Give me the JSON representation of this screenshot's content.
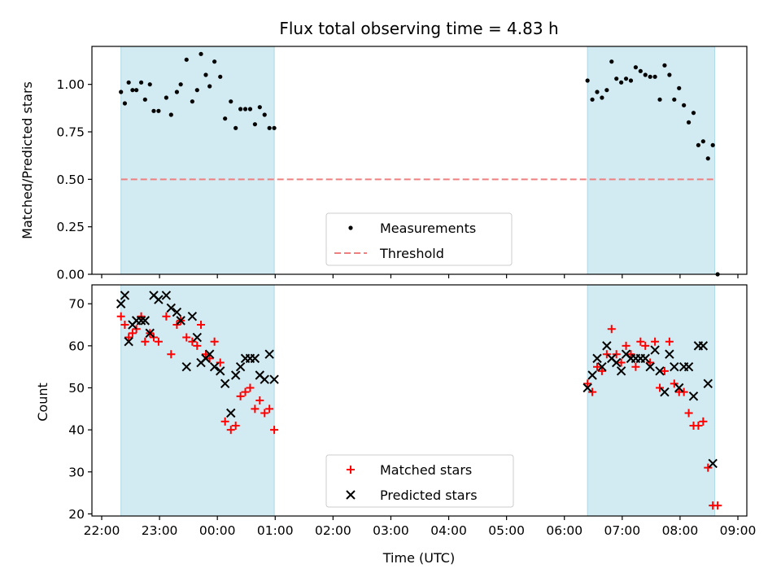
{
  "colors": {
    "shade": "#add8e6",
    "measurement": "#000000",
    "threshold": "#f08080",
    "matched": "#ff0000",
    "predicted": "#000000"
  },
  "chart_data": [
    {
      "type": "scatter",
      "title": "Flux total observing time = 4.83 h",
      "xlabel": "",
      "ylabel": "Matched/Predicted stars",
      "xlim": [
        "22:00",
        "09:00"
      ],
      "ylim": [
        0,
        1.2
      ],
      "y_ticks": [
        "0.00",
        "0.25",
        "0.50",
        "0.75",
        "1.00"
      ],
      "shaded_intervals": [
        [
          "22:20",
          "00:59"
        ],
        [
          "06:24",
          "08:36"
        ]
      ],
      "legend": {
        "position": "lower-center",
        "entries": [
          "Measurements",
          "Threshold"
        ]
      },
      "threshold": {
        "name": "Threshold",
        "value": 0.5,
        "x_range": [
          "22:20",
          "08:36"
        ],
        "style": "dashed"
      },
      "series": [
        {
          "name": "Measurements",
          "marker": "dot",
          "points": [
            [
              "22:20",
              0.96
            ],
            [
              "22:24",
              0.9
            ],
            [
              "22:28",
              1.01
            ],
            [
              "22:32",
              0.97
            ],
            [
              "22:36",
              0.97
            ],
            [
              "22:41",
              1.01
            ],
            [
              "22:45",
              0.92
            ],
            [
              "22:50",
              1.0
            ],
            [
              "22:54",
              0.86
            ],
            [
              "22:59",
              0.86
            ],
            [
              "23:07",
              0.93
            ],
            [
              "23:12",
              0.84
            ],
            [
              "23:18",
              0.96
            ],
            [
              "23:22",
              1.0
            ],
            [
              "23:28",
              1.13
            ],
            [
              "23:34",
              0.91
            ],
            [
              "23:39",
              0.97
            ],
            [
              "23:43",
              1.16
            ],
            [
              "23:48",
              1.05
            ],
            [
              "23:52",
              0.99
            ],
            [
              "23:57",
              1.12
            ],
            [
              "00:03",
              1.04
            ],
            [
              "00:08",
              0.82
            ],
            [
              "00:14",
              0.91
            ],
            [
              "00:19",
              0.77
            ],
            [
              "00:24",
              0.87
            ],
            [
              "00:29",
              0.87
            ],
            [
              "00:34",
              0.87
            ],
            [
              "00:39",
              0.79
            ],
            [
              "00:44",
              0.88
            ],
            [
              "00:49",
              0.84
            ],
            [
              "00:54",
              0.77
            ],
            [
              "00:59",
              0.77
            ],
            [
              "06:24",
              1.02
            ],
            [
              "06:29",
              0.92
            ],
            [
              "06:34",
              0.96
            ],
            [
              "06:39",
              0.93
            ],
            [
              "06:44",
              0.97
            ],
            [
              "06:49",
              1.12
            ],
            [
              "06:54",
              1.03
            ],
            [
              "06:59",
              1.01
            ],
            [
              "07:04",
              1.03
            ],
            [
              "07:09",
              1.02
            ],
            [
              "07:14",
              1.09
            ],
            [
              "07:19",
              1.07
            ],
            [
              "07:24",
              1.05
            ],
            [
              "07:29",
              1.04
            ],
            [
              "07:34",
              1.04
            ],
            [
              "07:39",
              0.92
            ],
            [
              "07:44",
              1.1
            ],
            [
              "07:49",
              1.05
            ],
            [
              "07:54",
              0.92
            ],
            [
              "07:59",
              0.98
            ],
            [
              "08:04",
              0.89
            ],
            [
              "08:09",
              0.8
            ],
            [
              "08:14",
              0.85
            ],
            [
              "08:19",
              0.68
            ],
            [
              "08:24",
              0.7
            ],
            [
              "08:29",
              0.61
            ],
            [
              "08:34",
              0.68
            ],
            [
              "08:39",
              0.0
            ]
          ]
        }
      ]
    },
    {
      "type": "scatter",
      "title": "",
      "xlabel": "Time (UTC)",
      "ylabel": "Count",
      "xlim": [
        "22:00",
        "09:00"
      ],
      "ylim": [
        19.5,
        74.5
      ],
      "x_ticks": [
        "22:00",
        "23:00",
        "00:00",
        "01:00",
        "02:00",
        "03:00",
        "04:00",
        "05:00",
        "06:00",
        "07:00",
        "08:00",
        "09:00"
      ],
      "y_ticks": [
        "20",
        "30",
        "40",
        "50",
        "60",
        "70"
      ],
      "shaded_intervals": [
        [
          "22:20",
          "00:59"
        ],
        [
          "06:24",
          "08:36"
        ]
      ],
      "legend": {
        "position": "lower-center",
        "entries": [
          "Matched stars",
          "Predicted stars"
        ]
      },
      "series": [
        {
          "name": "Matched stars",
          "marker": "plus",
          "points": [
            [
              "22:20",
              67
            ],
            [
              "22:24",
              65
            ],
            [
              "22:28",
              62
            ],
            [
              "22:32",
              63
            ],
            [
              "22:36",
              64
            ],
            [
              "22:41",
              67
            ],
            [
              "22:45",
              61
            ],
            [
              "22:50",
              63
            ],
            [
              "22:54",
              62
            ],
            [
              "22:59",
              61
            ],
            [
              "23:07",
              67
            ],
            [
              "23:12",
              58
            ],
            [
              "23:18",
              65
            ],
            [
              "23:22",
              66
            ],
            [
              "23:28",
              62
            ],
            [
              "23:34",
              61
            ],
            [
              "23:39",
              60
            ],
            [
              "23:43",
              65
            ],
            [
              "23:48",
              58
            ],
            [
              "23:52",
              57
            ],
            [
              "23:57",
              61
            ],
            [
              "00:03",
              56
            ],
            [
              "00:08",
              42
            ],
            [
              "00:14",
              40
            ],
            [
              "00:19",
              41
            ],
            [
              "00:24",
              48
            ],
            [
              "00:29",
              49
            ],
            [
              "00:34",
              50
            ],
            [
              "00:39",
              45
            ],
            [
              "00:44",
              47
            ],
            [
              "00:49",
              44
            ],
            [
              "00:54",
              45
            ],
            [
              "00:59",
              40
            ],
            [
              "06:24",
              51
            ],
            [
              "06:29",
              49
            ],
            [
              "06:34",
              55
            ],
            [
              "06:39",
              54
            ],
            [
              "06:44",
              58
            ],
            [
              "06:49",
              64
            ],
            [
              "06:54",
              58
            ],
            [
              "06:59",
              56
            ],
            [
              "07:04",
              60
            ],
            [
              "07:09",
              58
            ],
            [
              "07:14",
              55
            ],
            [
              "07:19",
              61
            ],
            [
              "07:24",
              60
            ],
            [
              "07:29",
              56
            ],
            [
              "07:34",
              61
            ],
            [
              "07:39",
              50
            ],
            [
              "07:44",
              54
            ],
            [
              "07:49",
              61
            ],
            [
              "07:54",
              51
            ],
            [
              "07:59",
              49
            ],
            [
              "08:04",
              49
            ],
            [
              "08:09",
              44
            ],
            [
              "08:14",
              41
            ],
            [
              "08:19",
              41
            ],
            [
              "08:24",
              42
            ],
            [
              "08:29",
              31
            ],
            [
              "08:34",
              22
            ],
            [
              "08:39",
              22
            ]
          ]
        },
        {
          "name": "Predicted stars",
          "marker": "x",
          "points": [
            [
              "22:20",
              70
            ],
            [
              "22:24",
              72
            ],
            [
              "22:28",
              61
            ],
            [
              "22:32",
              65
            ],
            [
              "22:36",
              66
            ],
            [
              "22:41",
              66
            ],
            [
              "22:45",
              66
            ],
            [
              "22:50",
              63
            ],
            [
              "22:54",
              72
            ],
            [
              "22:59",
              71
            ],
            [
              "23:07",
              72
            ],
            [
              "23:12",
              69
            ],
            [
              "23:18",
              68
            ],
            [
              "23:22",
              66
            ],
            [
              "23:28",
              55
            ],
            [
              "23:34",
              67
            ],
            [
              "23:39",
              62
            ],
            [
              "23:43",
              56
            ],
            [
              "23:48",
              57
            ],
            [
              "23:52",
              58
            ],
            [
              "23:57",
              55
            ],
            [
              "00:03",
              54
            ],
            [
              "00:08",
              51
            ],
            [
              "00:14",
              44
            ],
            [
              "00:19",
              53
            ],
            [
              "00:24",
              55
            ],
            [
              "00:29",
              57
            ],
            [
              "00:34",
              57
            ],
            [
              "00:39",
              57
            ],
            [
              "00:44",
              53
            ],
            [
              "00:49",
              52
            ],
            [
              "00:54",
              58
            ],
            [
              "00:59",
              52
            ],
            [
              "06:24",
              50
            ],
            [
              "06:29",
              53
            ],
            [
              "06:34",
              57
            ],
            [
              "06:39",
              55
            ],
            [
              "06:44",
              60
            ],
            [
              "06:49",
              57
            ],
            [
              "06:54",
              56
            ],
            [
              "06:59",
              54
            ],
            [
              "07:04",
              58
            ],
            [
              "07:09",
              57
            ],
            [
              "07:14",
              57
            ],
            [
              "07:19",
              57
            ],
            [
              "07:24",
              57
            ],
            [
              "07:29",
              55
            ],
            [
              "07:34",
              59
            ],
            [
              "07:39",
              54
            ],
            [
              "07:44",
              49
            ],
            [
              "07:49",
              58
            ],
            [
              "07:54",
              55
            ],
            [
              "07:59",
              50
            ],
            [
              "08:04",
              55
            ],
            [
              "08:09",
              55
            ],
            [
              "08:14",
              48
            ],
            [
              "08:19",
              60
            ],
            [
              "08:24",
              60
            ],
            [
              "08:29",
              51
            ],
            [
              "08:34",
              32
            ]
          ]
        }
      ]
    }
  ]
}
